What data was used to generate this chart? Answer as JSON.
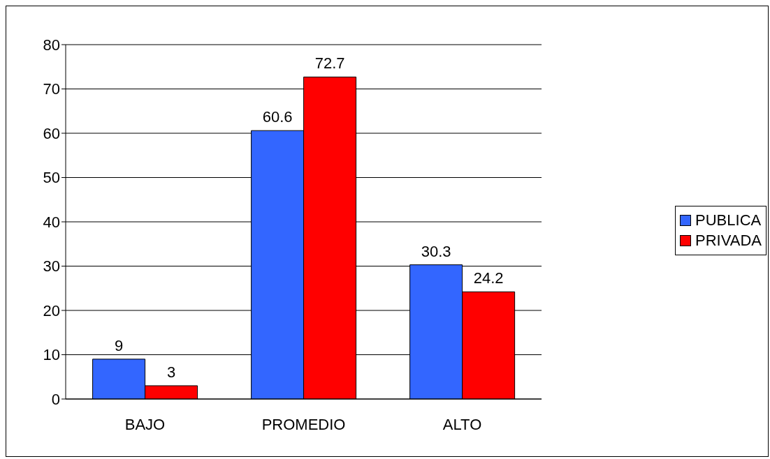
{
  "chart_data": {
    "type": "bar",
    "categories": [
      "BAJO",
      "PROMEDIO",
      "ALTO"
    ],
    "series": [
      {
        "name": "PUBLICA",
        "color": "#3366ff",
        "values": [
          9,
          60.6,
          30.3
        ]
      },
      {
        "name": "PRIVADA",
        "color": "#ff0000",
        "values": [
          3,
          72.7,
          24.2
        ]
      }
    ],
    "ylim": [
      0,
      80
    ],
    "yticks": [
      0,
      10,
      20,
      30,
      40,
      50,
      60,
      70,
      80
    ],
    "grid": "y",
    "legend": "right",
    "data_labels": true
  }
}
